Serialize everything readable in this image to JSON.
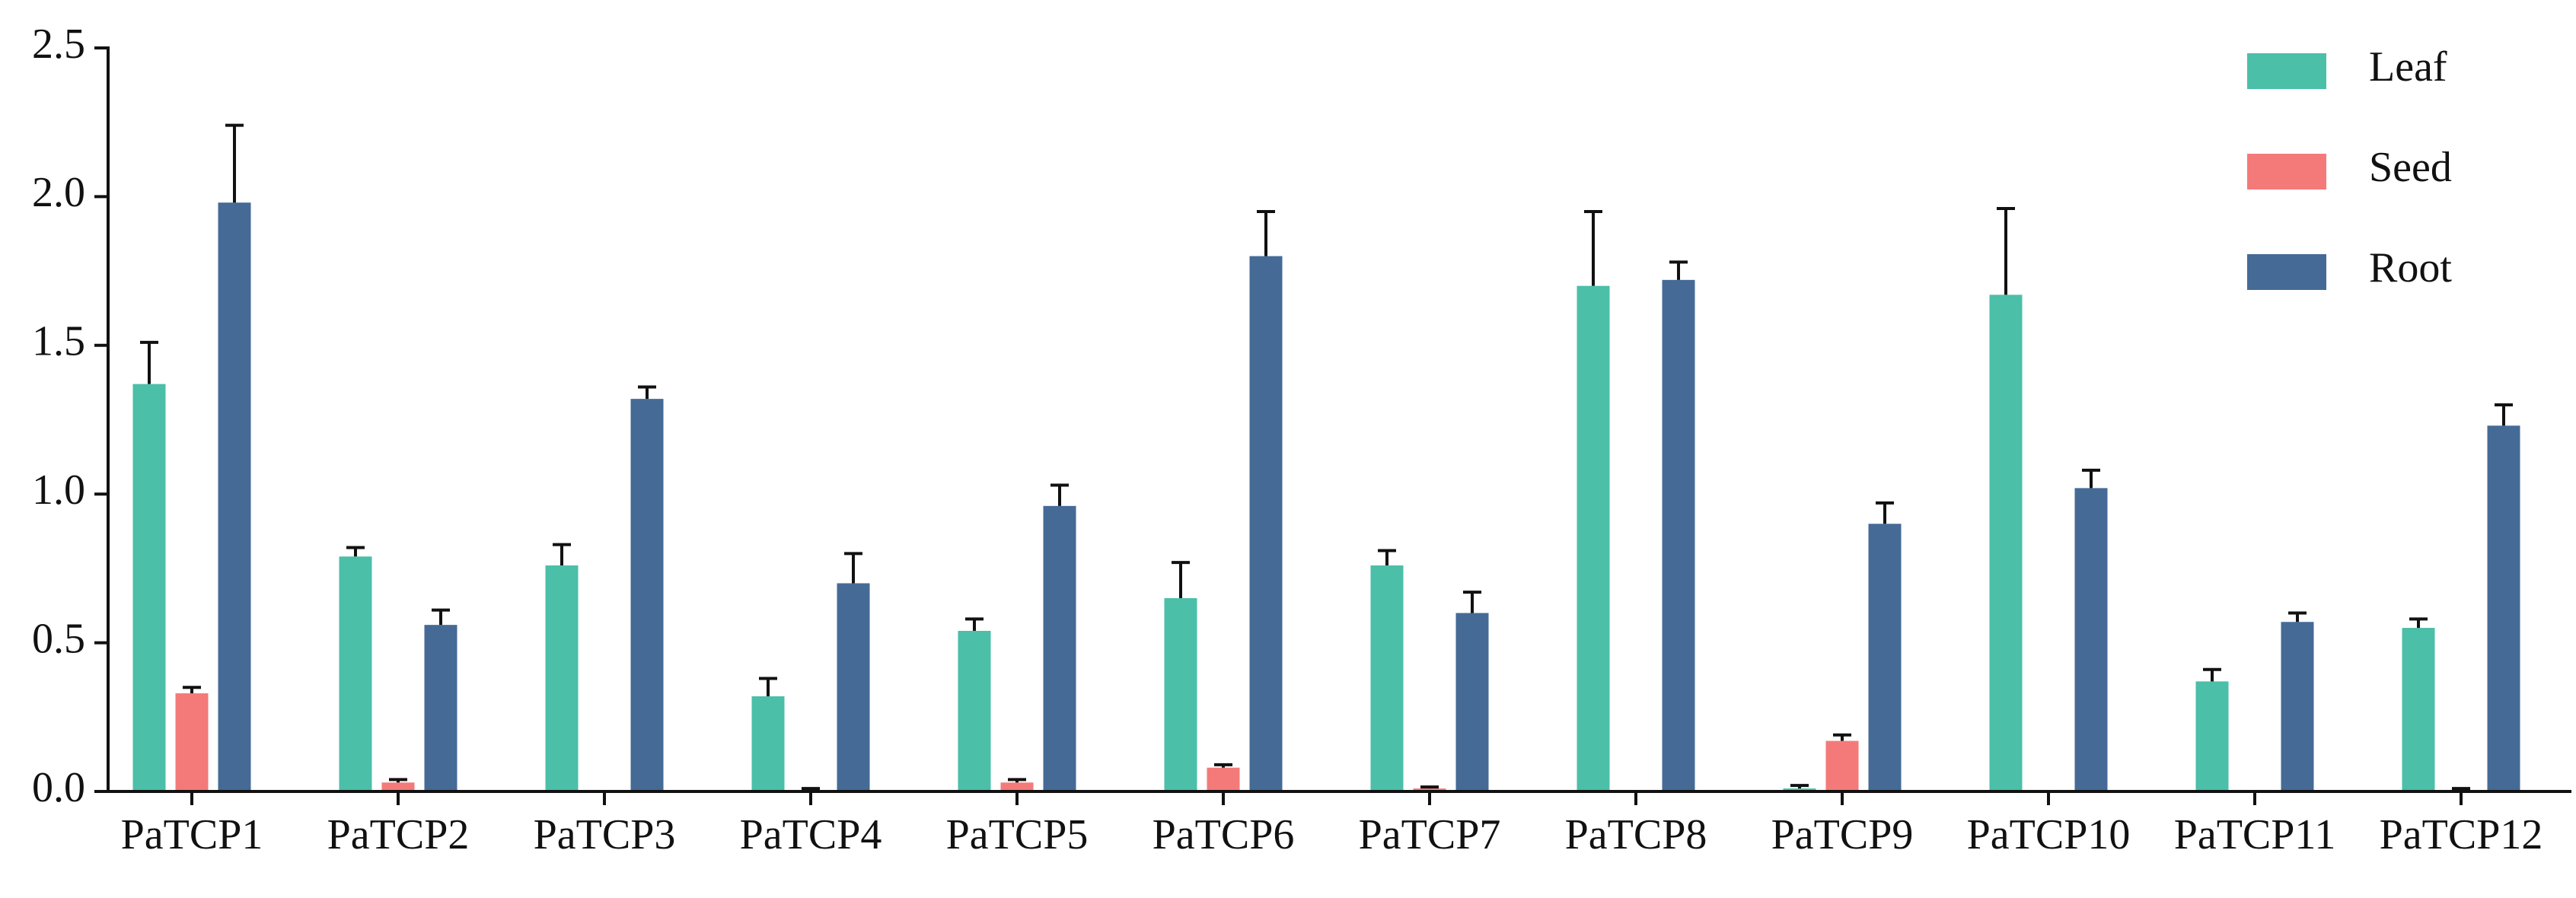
{
  "chart_data": {
    "type": "bar",
    "categories": [
      "PaTCP1",
      "PaTCP2",
      "PaTCP3",
      "PaTCP4",
      "PaTCP5",
      "PaTCP6",
      "PaTCP7",
      "PaTCP8",
      "PaTCP9",
      "PaTCP10",
      "PaTCP11",
      "PaTCP12"
    ],
    "series": [
      {
        "name": "Leaf",
        "color": "#4bbfa8",
        "values": [
          1.37,
          0.79,
          0.76,
          0.32,
          0.54,
          0.65,
          0.76,
          1.7,
          0.01,
          1.67,
          0.37,
          0.55
        ],
        "errors": [
          0.14,
          0.03,
          0.07,
          0.06,
          0.04,
          0.12,
          0.05,
          0.25,
          0.01,
          0.29,
          0.04,
          0.03
        ]
      },
      {
        "name": "Seed",
        "color": "#f47a7a",
        "values": [
          0.33,
          0.03,
          0,
          0.005,
          0.03,
          0.08,
          0.01,
          0,
          0.17,
          0,
          0,
          0.005
        ],
        "errors": [
          0.02,
          0.01,
          0,
          0.005,
          0.01,
          0.01,
          0.005,
          0,
          0.02,
          0,
          0,
          0.005
        ]
      },
      {
        "name": "Root",
        "color": "#456a96",
        "values": [
          1.98,
          0.56,
          1.32,
          0.7,
          0.96,
          1.8,
          0.6,
          1.72,
          0.9,
          1.02,
          0.57,
          1.23
        ],
        "errors": [
          0.26,
          0.05,
          0.04,
          0.1,
          0.07,
          0.15,
          0.07,
          0.06,
          0.07,
          0.06,
          0.03,
          0.07
        ]
      }
    ],
    "ylim": [
      0,
      2.5
    ],
    "yticks": [
      {
        "value": 0,
        "label": "0.0"
      },
      {
        "value": 0.5,
        "label": "0.5"
      },
      {
        "value": 1,
        "label": "1.0"
      },
      {
        "value": 1.5,
        "label": "1.5"
      },
      {
        "value": 2,
        "label": "2.0"
      },
      {
        "value": 2.5,
        "label": "2.5"
      }
    ],
    "grid": false,
    "legend": "upper right"
  }
}
